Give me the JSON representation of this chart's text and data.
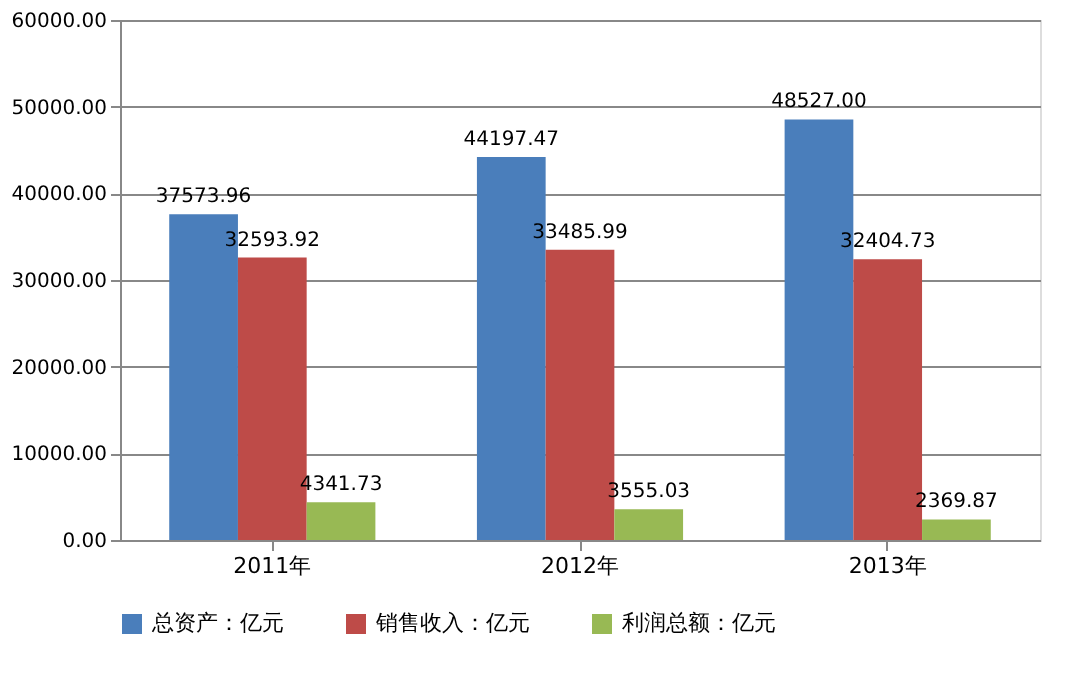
{
  "chart_data": {
    "type": "bar",
    "categories": [
      "2011年",
      "2012年",
      "2013年"
    ],
    "series": [
      {
        "name": "总资产：亿元",
        "color": "#4a7ebb",
        "values": [
          37573.96,
          44197.47,
          48527.0
        ],
        "value_labels": [
          "37573.96",
          "44197.47",
          "48527.00"
        ]
      },
      {
        "name": "销售收入：亿元",
        "color": "#be4b48",
        "values": [
          32593.92,
          33485.99,
          32404.73
        ],
        "value_labels": [
          "32593.92",
          "33485.99",
          "32404.73"
        ]
      },
      {
        "name": "利润总额：亿元",
        "color": "#98b954",
        "values": [
          4341.73,
          3555.03,
          2369.87
        ],
        "value_labels": [
          "4341.73",
          "3555.03",
          "2369.87"
        ]
      }
    ],
    "ylim": [
      0,
      60000
    ],
    "yticks": [
      {
        "value": 0,
        "label": "0.00"
      },
      {
        "value": 10000,
        "label": "10000.00"
      },
      {
        "value": 20000,
        "label": "20000.00"
      },
      {
        "value": 30000,
        "label": "30000.00"
      },
      {
        "value": 40000,
        "label": "40000.00"
      },
      {
        "value": 50000,
        "label": "50000.00"
      },
      {
        "value": 60000,
        "label": "60000.00"
      }
    ],
    "grid": "y",
    "legend": "bottom"
  }
}
